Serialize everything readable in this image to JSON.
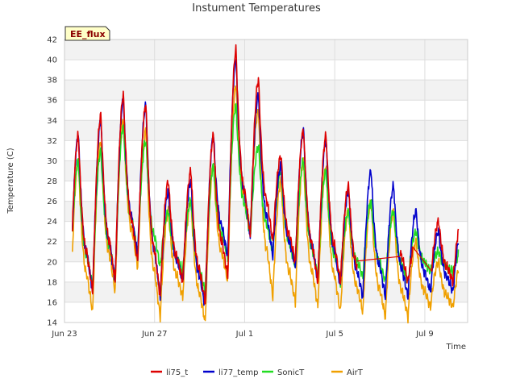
{
  "chart_data": {
    "type": "line",
    "title": "Instument Temperatures",
    "xlabel": "Time",
    "ylabel": "Temperature (C)",
    "badge": "EE_flux",
    "ylim": [
      14,
      42
    ],
    "yticks": [
      14,
      16,
      18,
      20,
      22,
      24,
      26,
      28,
      30,
      32,
      34,
      36,
      38,
      40,
      42
    ],
    "xlim_day": [
      0,
      17.9
    ],
    "xticks": [
      {
        "label": "Jun 23",
        "day": 0
      },
      {
        "label": "Jun 27",
        "day": 4
      },
      {
        "label": "Jul 1",
        "day": 8
      },
      {
        "label": "Jul 5",
        "day": 12
      },
      {
        "label": "Jul 9",
        "day": 16
      }
    ],
    "grid": true,
    "legend_position": "bottom",
    "colors": {
      "li75_t": "#dd0000",
      "li77_temp": "#0000cc",
      "SonicT": "#22dd22",
      "AirT": "#f0a000"
    },
    "series": [
      {
        "name": "li75_t",
        "color": "#dd0000",
        "min": [
          17,
          17,
          18,
          20,
          16.5,
          18,
          16,
          18.5,
          22.5,
          22,
          20,
          18,
          18,
          17,
          17,
          18,
          18
        ],
        "max": [
          32.5,
          34.5,
          36.5,
          35.5,
          28,
          29,
          32.5,
          41,
          38,
          30.5,
          33,
          32.5,
          27.5,
          29.5,
          28,
          22,
          24
        ]
      },
      {
        "name": "li77_temp",
        "color": "#0000cc",
        "min": [
          16.5,
          17,
          18,
          20.5,
          16.5,
          18,
          15.5,
          20.5,
          22.5,
          20.5,
          19.5,
          18,
          17.5,
          16.5,
          16.5,
          16.5,
          17
        ],
        "max": [
          32.5,
          34,
          36,
          35.5,
          27,
          28,
          32.5,
          40,
          36.5,
          29.5,
          33,
          32,
          27,
          29,
          27.5,
          25,
          23
        ]
      },
      {
        "name": "SonicT",
        "color": "#22dd22",
        "min": [
          18,
          17.5,
          18.5,
          21,
          19.5,
          19,
          17,
          20.5,
          22.5,
          21,
          19.5,
          18.5,
          18,
          18.5,
          18,
          18,
          19
        ],
        "max": [
          30,
          31,
          33.5,
          32,
          25,
          26,
          29.5,
          35.5,
          31.5,
          29,
          30,
          29,
          25,
          26,
          25,
          23,
          21
        ]
      },
      {
        "name": "AirT",
        "color": "#f0a000",
        "min": [
          14.5,
          15,
          17,
          19.5,
          14.5,
          16.5,
          14,
          18,
          23,
          16.5,
          16,
          15.5,
          15,
          15,
          14.5,
          14.5,
          15.5
        ],
        "max": [
          30,
          32,
          34,
          33,
          25,
          26,
          29.5,
          37.5,
          35,
          28,
          30,
          29.5,
          25,
          26,
          25,
          22,
          20
        ]
      }
    ]
  }
}
